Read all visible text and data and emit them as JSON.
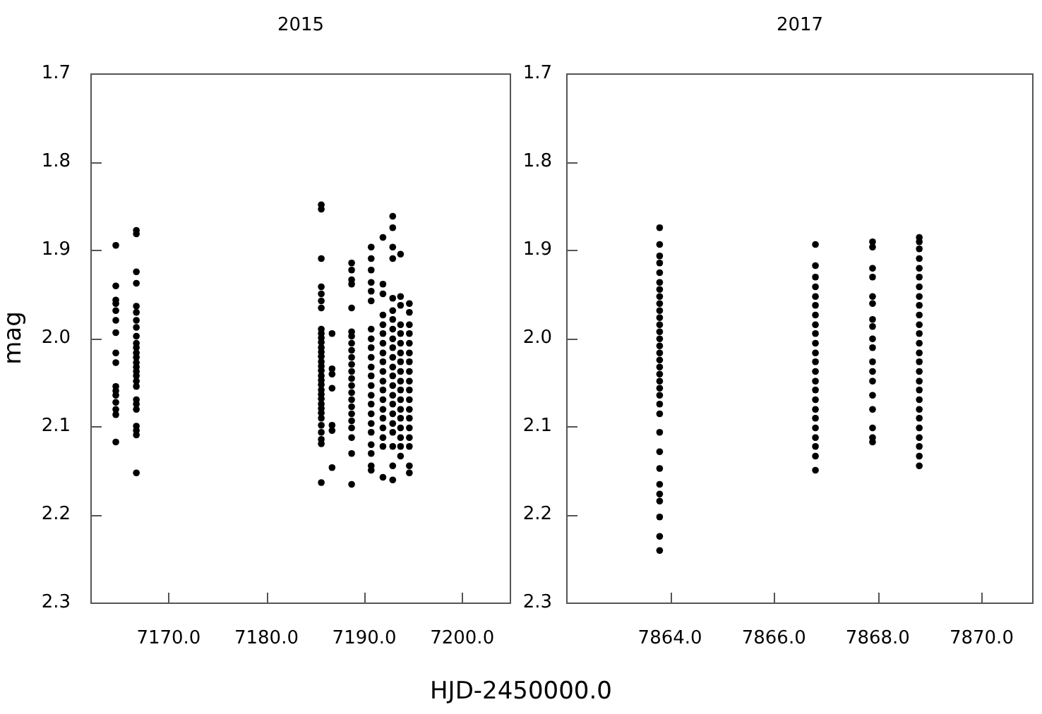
{
  "chart_data": [
    {
      "type": "scatter",
      "title": "2015",
      "xlabel": "HJD-2450000.0",
      "ylabel": "mag",
      "marker": "circle",
      "xlim": [
        7162,
        7205
      ],
      "ylim": [
        2.3,
        1.7
      ],
      "xticks": [
        {
          "value": 7170,
          "label": "7170.0"
        },
        {
          "value": 7180,
          "label": "7180.0"
        },
        {
          "value": 7190,
          "label": "7190.0"
        },
        {
          "value": 7200,
          "label": "7200.0"
        }
      ],
      "yticks": [
        1.7,
        1.8,
        1.9,
        {
          "value": 2,
          "label": "2.0"
        },
        2.1,
        2.2,
        2.3
      ],
      "series": [
        {
          "color": "#000000",
          "x": [
            7164.6,
            7164.6,
            7164.6,
            7164.6,
            7164.6,
            7164.6,
            7164.6,
            7164.6,
            7164.6,
            7164.6,
            7164.6,
            7164.6,
            7164.6,
            7164.6,
            7164.6,
            7164.6
          ],
          "values": [
            1.895,
            1.941,
            1.957,
            1.961,
            1.969,
            1.98,
            1.994,
            2.017,
            2.028,
            2.055,
            2.06,
            2.065,
            2.073,
            2.081,
            2.087,
            2.118
          ]
        },
        {
          "color": "#000000",
          "x": [
            7166.7,
            7166.7,
            7166.7,
            7166.7,
            7166.7,
            7166.7,
            7166.7,
            7166.7,
            7166.7,
            7166.7,
            7166.7,
            7166.7,
            7166.7,
            7166.7,
            7166.7,
            7166.7,
            7166.7,
            7166.7,
            7166.7,
            7166.7,
            7166.7,
            7166.7,
            7166.7,
            7166.7,
            7166.7,
            7166.7
          ],
          "values": [
            1.878,
            1.882,
            1.925,
            1.938,
            1.964,
            1.971,
            1.98,
            1.988,
            1.998,
            2.006,
            2.011,
            2.017,
            2.022,
            2.028,
            2.033,
            2.038,
            2.043,
            2.049,
            2.055,
            2.07,
            2.075,
            2.081,
            2.1,
            2.105,
            2.11,
            2.153
          ]
        },
        {
          "color": "#000000",
          "x": [
            7185.6,
            7185.6,
            7185.6,
            7185.6,
            7185.6,
            7185.6,
            7185.6,
            7185.6,
            7185.6,
            7185.6,
            7185.6,
            7185.6,
            7185.6,
            7185.6,
            7185.6,
            7185.6,
            7185.6,
            7185.6,
            7185.6,
            7185.6,
            7185.6,
            7185.6,
            7185.6,
            7185.6,
            7185.6,
            7185.6,
            7185.6,
            7185.6,
            7185.6,
            7185.6,
            7185.6,
            7185.6
          ],
          "values": [
            1.849,
            1.854,
            1.91,
            1.942,
            1.95,
            1.958,
            1.966,
            1.99,
            1.995,
            2.0,
            2.005,
            2.011,
            2.016,
            2.021,
            2.027,
            2.032,
            2.037,
            2.043,
            2.048,
            2.053,
            2.059,
            2.064,
            2.069,
            2.075,
            2.08,
            2.085,
            2.091,
            2.099,
            2.107,
            2.115,
            2.12,
            2.164
          ]
        },
        {
          "color": "#000000",
          "x": [
            7186.7,
            7186.7,
            7186.7,
            7186.7,
            7186.7,
            7186.7,
            7186.7
          ],
          "values": [
            1.995,
            2.035,
            2.041,
            2.057,
            2.099,
            2.105,
            2.147
          ]
        },
        {
          "color": "#000000",
          "x": [
            7188.7,
            7188.7,
            7188.7,
            7188.7,
            7188.7,
            7188.7,
            7188.7,
            7188.7,
            7188.7,
            7188.7,
            7188.7,
            7188.7,
            7188.7,
            7188.7,
            7188.7,
            7188.7,
            7188.7,
            7188.7,
            7188.7,
            7188.7,
            7188.7,
            7188.7,
            7188.7
          ],
          "values": [
            1.915,
            1.923,
            1.934,
            1.939,
            1.966,
            1.993,
            1.998,
            2.006,
            2.014,
            2.022,
            2.03,
            2.038,
            2.046,
            2.054,
            2.062,
            2.07,
            2.078,
            2.086,
            2.094,
            2.102,
            2.113,
            2.131,
            2.166
          ]
        },
        {
          "color": "#000000",
          "x": [
            7190.7,
            7190.7,
            7190.7,
            7190.7,
            7190.7,
            7190.7,
            7190.7,
            7190.7,
            7190.7,
            7190.7,
            7190.7,
            7190.7,
            7190.7,
            7190.7,
            7190.7,
            7190.7,
            7190.7,
            7190.7,
            7190.7,
            7190.7,
            7190.7,
            7190.7
          ],
          "values": [
            1.897,
            1.91,
            1.923,
            1.937,
            1.947,
            1.958,
            1.99,
            2.001,
            2.011,
            2.022,
            2.033,
            2.043,
            2.054,
            2.065,
            2.075,
            2.086,
            2.097,
            2.107,
            2.121,
            2.131,
            2.145,
            2.15
          ]
        },
        {
          "color": "#000000",
          "x": [
            7191.9,
            7191.9,
            7191.9,
            7191.9,
            7191.9,
            7191.9,
            7191.9,
            7191.9,
            7191.9,
            7191.9,
            7191.9,
            7191.9,
            7191.9,
            7191.9,
            7191.9,
            7191.9,
            7191.9,
            7191.9,
            7191.9
          ],
          "values": [
            1.886,
            1.939,
            1.95,
            1.974,
            1.985,
            1.995,
            2.006,
            2.017,
            2.027,
            2.038,
            2.049,
            2.059,
            2.07,
            2.081,
            2.091,
            2.102,
            2.113,
            2.123,
            2.158
          ]
        },
        {
          "color": "#000000",
          "x": [
            7192.9,
            7192.9,
            7192.9,
            7192.9,
            7192.9,
            7192.9,
            7192.9,
            7192.9,
            7192.9,
            7192.9,
            7192.9,
            7192.9,
            7192.9,
            7192.9,
            7192.9,
            7192.9,
            7192.9,
            7192.9,
            7192.9,
            7192.9,
            7192.9,
            7192.9
          ],
          "values": [
            1.862,
            1.875,
            1.897,
            1.91,
            1.955,
            1.969,
            1.979,
            1.99,
            2.001,
            2.011,
            2.022,
            2.033,
            2.043,
            2.054,
            2.065,
            2.075,
            2.086,
            2.097,
            2.107,
            2.123,
            2.145,
            2.161
          ]
        },
        {
          "color": "#000000",
          "x": [
            7193.7,
            7193.7,
            7193.7,
            7193.7,
            7193.7,
            7193.7,
            7193.7,
            7193.7,
            7193.7,
            7193.7,
            7193.7,
            7193.7,
            7193.7,
            7193.7,
            7193.7,
            7193.7,
            7193.7,
            7193.7
          ],
          "values": [
            1.905,
            1.953,
            1.963,
            1.985,
            1.995,
            2.006,
            2.017,
            2.027,
            2.038,
            2.049,
            2.059,
            2.07,
            2.081,
            2.091,
            2.102,
            2.113,
            2.123,
            2.134
          ]
        },
        {
          "color": "#000000",
          "x": [
            7194.6,
            7194.6,
            7194.6,
            7194.6,
            7194.6,
            7194.6,
            7194.6,
            7194.6,
            7194.6,
            7194.6,
            7194.6,
            7194.6,
            7194.6,
            7194.6,
            7194.6,
            7194.6,
            7194.6,
            7194.6
          ],
          "values": [
            1.961,
            1.971,
            1.985,
            1.995,
            2.006,
            2.017,
            2.027,
            2.038,
            2.049,
            2.059,
            2.07,
            2.081,
            2.091,
            2.102,
            2.113,
            2.123,
            2.145,
            2.153
          ]
        }
      ]
    },
    {
      "type": "scatter",
      "title": "2017",
      "marker": "circle",
      "xlim": [
        7862,
        7871
      ],
      "ylim": [
        2.3,
        1.7
      ],
      "xticks": [
        {
          "value": 7864,
          "label": "7864.0"
        },
        {
          "value": 7866,
          "label": "7866.0"
        },
        {
          "value": 7868,
          "label": "7868.0"
        },
        {
          "value": 7870,
          "label": "7870.0"
        }
      ],
      "yticks": [
        1.7,
        1.8,
        1.9,
        {
          "value": 2,
          "label": "2.0"
        },
        2.1,
        2.2,
        2.3
      ],
      "series": [
        {
          "color": "#000000",
          "x": [
            7863.8,
            7863.8,
            7863.8,
            7863.8,
            7863.8,
            7863.8,
            7863.8,
            7863.8,
            7863.8,
            7863.8,
            7863.8,
            7863.8,
            7863.8,
            7863.8,
            7863.8,
            7863.8,
            7863.8,
            7863.8,
            7863.8,
            7863.8,
            7863.8,
            7863.8,
            7863.8,
            7863.8,
            7863.8,
            7863.8,
            7863.8,
            7863.8,
            7863.8,
            7863.8,
            7863.8,
            7863.8,
            7863.8
          ],
          "values": [
            1.875,
            1.894,
            1.907,
            1.915,
            1.926,
            1.937,
            1.945,
            1.953,
            1.961,
            1.969,
            1.977,
            1.985,
            1.993,
            2.001,
            2.009,
            2.017,
            2.025,
            2.033,
            2.041,
            2.049,
            2.057,
            2.065,
            2.075,
            2.086,
            2.107,
            2.129,
            2.148,
            2.166,
            2.177,
            2.185,
            2.203,
            2.225,
            2.241
          ]
        },
        {
          "color": "#000000",
          "x": [
            7866.8,
            7866.8,
            7866.8,
            7866.8,
            7866.8,
            7866.8,
            7866.8,
            7866.8,
            7866.8,
            7866.8,
            7866.8,
            7866.8,
            7866.8,
            7866.8,
            7866.8,
            7866.8,
            7866.8,
            7866.8,
            7866.8,
            7866.8,
            7866.8,
            7866.8,
            7866.8
          ],
          "values": [
            1.894,
            1.918,
            1.931,
            1.942,
            1.953,
            1.963,
            1.974,
            1.985,
            1.995,
            2.006,
            2.017,
            2.027,
            2.038,
            2.049,
            2.059,
            2.07,
            2.081,
            2.091,
            2.102,
            2.113,
            2.123,
            2.134,
            2.15
          ]
        },
        {
          "color": "#000000",
          "x": [
            7867.9,
            7867.9,
            7867.9,
            7867.9,
            7867.9,
            7867.9,
            7867.9,
            7867.9,
            7867.9,
            7867.9,
            7867.9,
            7867.9,
            7867.9,
            7867.9,
            7867.9,
            7867.9,
            7867.9,
            7867.9
          ],
          "values": [
            1.891,
            1.897,
            1.921,
            1.931,
            1.953,
            1.961,
            1.979,
            1.987,
            2.001,
            2.011,
            2.027,
            2.038,
            2.049,
            2.065,
            2.081,
            2.102,
            2.113,
            2.118
          ]
        },
        {
          "color": "#000000",
          "x": [
            7868.8,
            7868.8,
            7868.8,
            7868.8,
            7868.8,
            7868.8,
            7868.8,
            7868.8,
            7868.8,
            7868.8,
            7868.8,
            7868.8,
            7868.8,
            7868.8,
            7868.8,
            7868.8,
            7868.8,
            7868.8,
            7868.8,
            7868.8,
            7868.8,
            7868.8,
            7868.8,
            7868.8,
            7868.8,
            7868.8
          ],
          "values": [
            1.886,
            1.891,
            1.899,
            1.91,
            1.921,
            1.931,
            1.942,
            1.953,
            1.963,
            1.974,
            1.985,
            1.995,
            2.006,
            2.017,
            2.027,
            2.038,
            2.049,
            2.059,
            2.07,
            2.081,
            2.091,
            2.102,
            2.113,
            2.123,
            2.134,
            2.145
          ]
        }
      ]
    }
  ]
}
